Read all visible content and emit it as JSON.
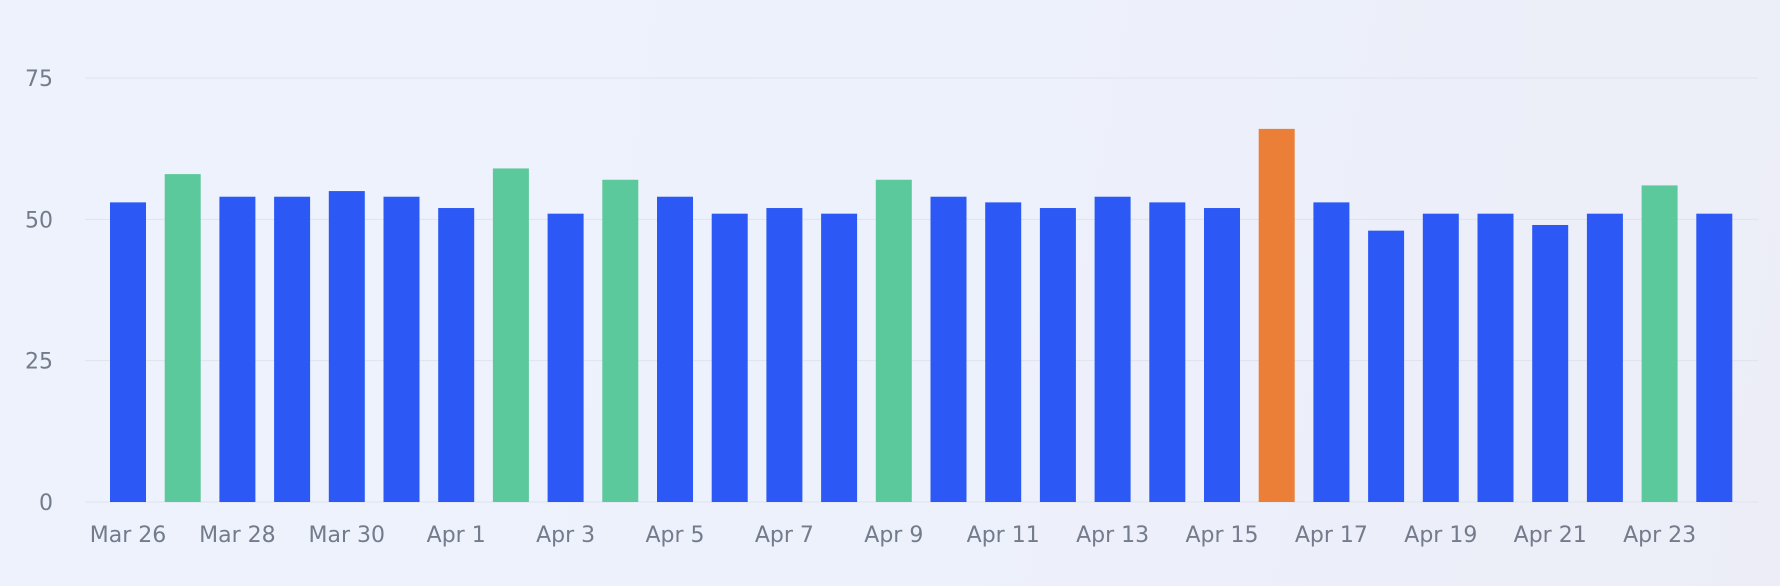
{
  "colors": {
    "default": "#2c59f5",
    "above_average": "#5cc99c",
    "peak": "#ec7f37",
    "grid": "#dfe3ec",
    "tick_text": "#737b8c"
  },
  "chart_data": {
    "type": "bar",
    "title": "",
    "xlabel": "",
    "ylabel": "",
    "ylim": [
      0,
      75
    ],
    "y_ticks": [
      0,
      25,
      50,
      75
    ],
    "grid": true,
    "categories": [
      "Mar 26",
      "Mar 27",
      "Mar 28",
      "Mar 29",
      "Mar 30",
      "Mar 31",
      "Apr 1",
      "Apr 2",
      "Apr 3",
      "Apr 4",
      "Apr 5",
      "Apr 6",
      "Apr 7",
      "Apr 8",
      "Apr 9",
      "Apr 10",
      "Apr 11",
      "Apr 12",
      "Apr 13",
      "Apr 14",
      "Apr 15",
      "Apr 16",
      "Apr 17",
      "Apr 18",
      "Apr 19",
      "Apr 20",
      "Apr 21",
      "Apr 22",
      "Apr 23",
      "Apr 24"
    ],
    "x_tick_labels": [
      "Mar 26",
      "Mar 28",
      "Mar 30",
      "Apr 1",
      "Apr 3",
      "Apr 5",
      "Apr 7",
      "Apr 9",
      "Apr 11",
      "Apr 13",
      "Apr 15",
      "Apr 17",
      "Apr 19",
      "Apr 21",
      "Apr 23"
    ],
    "values": [
      53,
      58,
      54,
      54,
      55,
      54,
      52,
      59,
      51,
      57,
      54,
      51,
      52,
      51,
      57,
      54,
      53,
      52,
      54,
      53,
      52,
      66,
      53,
      48,
      51,
      51,
      49,
      51,
      56,
      51
    ],
    "bar_colors": [
      "default",
      "above_average",
      "default",
      "default",
      "default",
      "default",
      "default",
      "above_average",
      "default",
      "above_average",
      "default",
      "default",
      "default",
      "default",
      "above_average",
      "default",
      "default",
      "default",
      "default",
      "default",
      "default",
      "peak",
      "default",
      "default",
      "default",
      "default",
      "default",
      "default",
      "above_average",
      "default"
    ]
  }
}
